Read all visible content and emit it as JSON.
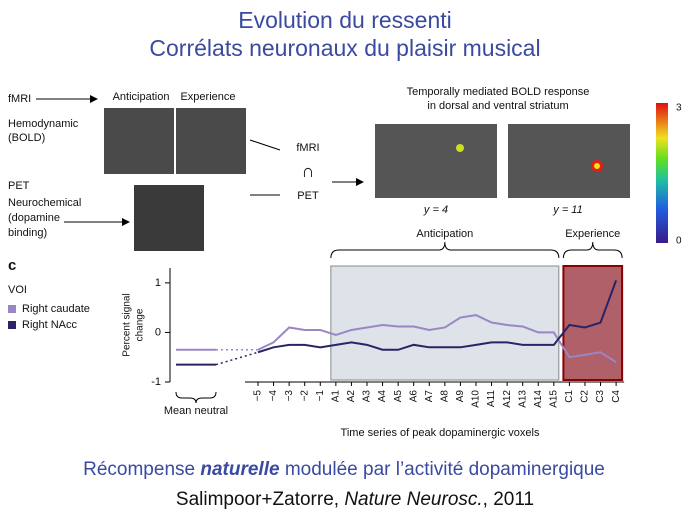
{
  "title": [
    "Evolution du ressenti",
    "Corrélats neuronaux du plaisir musical"
  ],
  "figure": {
    "fmri": "fMRI",
    "anticipation": "Anticipation",
    "experience": "Experience",
    "bold": [
      "Hemodynamic",
      "(BOLD)"
    ],
    "pet": "PET",
    "neurochem": [
      "Neurochemical",
      "(dopamine",
      "binding)"
    ],
    "intersect": [
      "fMRI",
      "∩",
      "PET"
    ],
    "response_title": [
      "Temporally mediated BOLD response",
      "in dorsal and ventral striatum"
    ],
    "slices": [
      "y = 4",
      "y = 11"
    ],
    "colorbar": [
      "3",
      "0"
    ]
  },
  "chart_data": {
    "type": "line",
    "panel_label": "c",
    "legend_title": "VOI",
    "y_label": [
      "Percent signal",
      "change"
    ],
    "x_label": "Time series of peak dopaminergic voxels",
    "annotations": {
      "anticipation": "Anticipation",
      "experience": "Experience",
      "neutral": "Mean neutral"
    },
    "categories": [
      "−5",
      "−4",
      "−3",
      "−2",
      "−1",
      "A1",
      "A2",
      "A3",
      "A4",
      "A5",
      "A6",
      "A7",
      "A8",
      "A9",
      "A10",
      "A11",
      "A12",
      "A13",
      "A14",
      "A15",
      "C1",
      "C2",
      "C3",
      "C4"
    ],
    "series": [
      {
        "name": "Right caudate",
        "color": "#9b86c4",
        "neutral": -0.35,
        "values": [
          -0.35,
          -0.2,
          0.1,
          0.05,
          0.05,
          -0.05,
          0.05,
          0.1,
          0.15,
          0.12,
          0.12,
          0.05,
          0.1,
          0.3,
          0.35,
          0.2,
          0.15,
          0.12,
          0.0,
          0.0,
          -0.5,
          -0.45,
          -0.4,
          -0.6
        ]
      },
      {
        "name": "Right NAcc",
        "color": "#2a2466",
        "neutral": -0.65,
        "values": [
          -0.4,
          -0.3,
          -0.25,
          -0.25,
          -0.3,
          -0.25,
          -0.2,
          -0.25,
          -0.35,
          -0.35,
          -0.25,
          -0.3,
          -0.3,
          -0.3,
          -0.25,
          -0.2,
          -0.2,
          -0.25,
          -0.25,
          -0.25,
          0.15,
          0.1,
          0.2,
          1.05
        ]
      }
    ],
    "ylim": [
      -1,
      1.3
    ],
    "yticks": [
      -1,
      0,
      1
    ]
  },
  "caption": [
    "Récompense ",
    "naturelle",
    " modulée par l’activité dopaminergique"
  ],
  "citation": [
    "Salimpoor+Zatorre, ",
    "Nature Neurosc.",
    ", 2011"
  ]
}
